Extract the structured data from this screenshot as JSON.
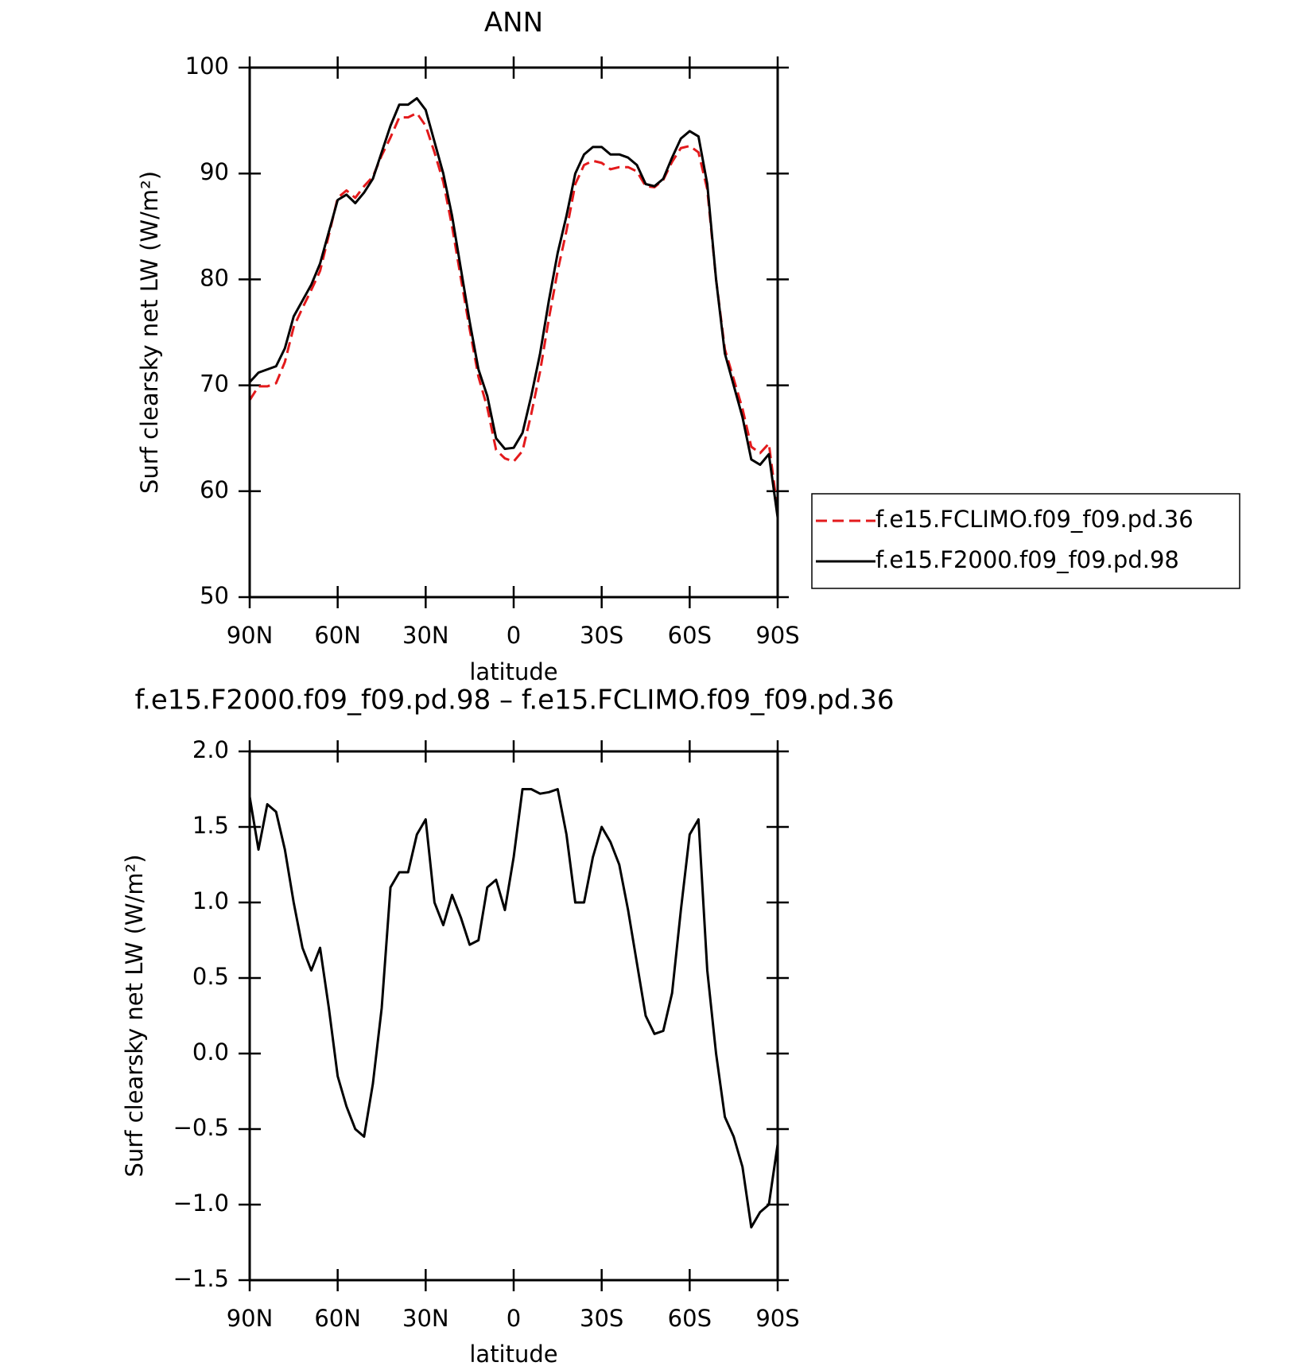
{
  "chart_data": [
    {
      "type": "line",
      "title": "ANN",
      "x": [
        90,
        87,
        84,
        81,
        78,
        75,
        72,
        69,
        66,
        63,
        60,
        57,
        54,
        51,
        48,
        45,
        42,
        39,
        36,
        33,
        30,
        27,
        24,
        21,
        18,
        15,
        12,
        9,
        6,
        3,
        0,
        -3,
        -6,
        -9,
        -12,
        -15,
        -18,
        -21,
        -24,
        -27,
        -30,
        -33,
        -36,
        -39,
        -42,
        -45,
        -48,
        -51,
        -54,
        -57,
        -60,
        -63,
        -66,
        -69,
        -72,
        -75,
        -78,
        -81,
        -84,
        -87,
        -90
      ],
      "series": [
        {
          "name": "f.e15.FCLIMO.f09_f09.pd.36",
          "color": "#e31a1c",
          "dash": true,
          "values": [
            68.6,
            69.9,
            69.9,
            70.2,
            72.2,
            75.5,
            77.3,
            79.0,
            80.8,
            84.2,
            87.7,
            88.4,
            87.7,
            88.8,
            89.7,
            91.7,
            93.4,
            95.3,
            95.3,
            95.7,
            94.5,
            92.0,
            89.2,
            85.0,
            80.1,
            75.3,
            70.8,
            67.9,
            63.9,
            63.1,
            62.8,
            63.8,
            67.3,
            71.3,
            76.3,
            80.8,
            84.6,
            89.0,
            90.8,
            91.2,
            91.0,
            90.4,
            90.6,
            90.6,
            90.2,
            88.8,
            88.7,
            89.4,
            91.1,
            92.4,
            92.6,
            92.0,
            88.5,
            80.0,
            73.4,
            70.6,
            67.8,
            64.2,
            63.6,
            64.5,
            58.1
          ]
        },
        {
          "name": "f.e15.F2000.f09_f09.pd.98",
          "color": "#000000",
          "dash": false,
          "values": [
            70.3,
            71.2,
            71.5,
            71.8,
            73.5,
            76.5,
            78.0,
            79.5,
            81.5,
            84.5,
            87.5,
            88.0,
            87.2,
            88.2,
            89.5,
            92.0,
            94.5,
            96.5,
            96.5,
            97.1,
            96.0,
            93.0,
            90.0,
            86.0,
            81.0,
            76.0,
            71.5,
            69.0,
            65.0,
            64.0,
            64.1,
            65.5,
            69.0,
            73.0,
            78.0,
            82.5,
            86.0,
            90.0,
            91.8,
            92.5,
            92.5,
            91.8,
            91.8,
            91.5,
            90.8,
            89.0,
            88.8,
            89.5,
            91.5,
            93.3,
            94.0,
            93.5,
            89.0,
            80.0,
            73.0,
            70.0,
            67.0,
            63.0,
            62.5,
            63.5,
            57.5
          ]
        }
      ],
      "xlabel": "latitude",
      "ylabel": "Surf clearsky net LW (W/m²)",
      "xlim": [
        90,
        -90
      ],
      "xticks": [
        {
          "value": 90,
          "label": "90N"
        },
        {
          "value": 60,
          "label": "60N"
        },
        {
          "value": 30,
          "label": "30N"
        },
        0,
        {
          "value": -30,
          "label": "30S"
        },
        {
          "value": -60,
          "label": "60S"
        },
        {
          "value": -90,
          "label": "90S"
        }
      ],
      "ylim": [
        50,
        100
      ],
      "yticks": [
        50,
        60,
        70,
        80,
        90,
        100
      ],
      "legend": "right"
    },
    {
      "type": "line",
      "title": "f.e15.F2000.f09_f09.pd.98 – f.e15.FCLIMO.f09_f09.pd.36",
      "x": [
        90,
        87,
        84,
        81,
        78,
        75,
        72,
        69,
        66,
        63,
        60,
        57,
        54,
        51,
        48,
        45,
        42,
        39,
        36,
        33,
        30,
        27,
        24,
        21,
        18,
        15,
        12,
        9,
        6,
        3,
        0,
        -3,
        -6,
        -9,
        -12,
        -15,
        -18,
        -21,
        -24,
        -27,
        -30,
        -33,
        -36,
        -39,
        -42,
        -45,
        -48,
        -51,
        -54,
        -57,
        -60,
        -63,
        -66,
        -69,
        -72,
        -75,
        -78,
        -81,
        -84,
        -87,
        -90
      ],
      "color": "#000000",
      "values": [
        1.7,
        1.35,
        1.65,
        1.6,
        1.35,
        1.0,
        0.7,
        0.55,
        0.7,
        0.3,
        -0.15,
        -0.35,
        -0.5,
        -0.55,
        -0.2,
        0.3,
        1.1,
        1.2,
        1.2,
        1.45,
        1.55,
        1.0,
        0.85,
        1.05,
        0.9,
        0.72,
        0.75,
        1.1,
        1.15,
        0.95,
        1.3,
        1.75,
        1.75,
        1.72,
        1.73,
        1.75,
        1.45,
        1.0,
        1.0,
        1.3,
        1.5,
        1.4,
        1.25,
        0.95,
        0.6,
        0.25,
        0.13,
        0.15,
        0.4,
        0.95,
        1.45,
        1.55,
        0.55,
        0.0,
        -0.42,
        -0.55,
        -0.75,
        -1.15,
        -1.05,
        -1.0,
        -0.6
      ],
      "xlabel": "latitude",
      "ylabel": "Surf clearsky net LW (W/m²)",
      "xlim": [
        90,
        -90
      ],
      "xticks": [
        {
          "value": 90,
          "label": "90N"
        },
        {
          "value": 60,
          "label": "60N"
        },
        {
          "value": 30,
          "label": "30N"
        },
        0,
        {
          "value": -30,
          "label": "30S"
        },
        {
          "value": -60,
          "label": "60S"
        },
        {
          "value": -90,
          "label": "90S"
        }
      ],
      "ylim": [
        -1.5,
        2
      ],
      "yticks": [
        {
          "value": -1.5,
          "label": "−1.5"
        },
        {
          "value": -1,
          "label": "−1.0"
        },
        {
          "value": -0.5,
          "label": "−0.5"
        },
        {
          "value": 0,
          "label": "0.0"
        },
        0.5,
        {
          "value": 1,
          "label": "1.0"
        },
        1.5,
        {
          "value": 2,
          "label": "2.0"
        }
      ]
    }
  ]
}
